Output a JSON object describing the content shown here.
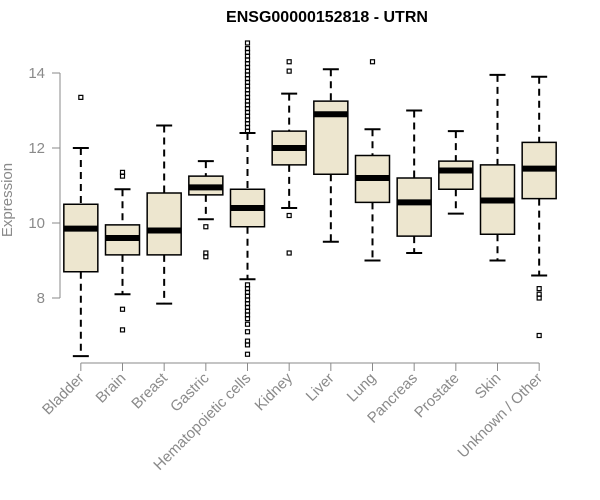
{
  "chart_data": {
    "type": "boxplot",
    "title": "ENSG00000152818 - UTRN",
    "ylabel": "Expression",
    "xlabel": "",
    "ylim": [
      6.2,
      14.9
    ],
    "yticks": [
      8,
      10,
      12,
      14
    ],
    "grid": false,
    "legend": "none",
    "box_fill": "#ede6cf",
    "stroke": "#000000",
    "axis_color": "#8a8a8a",
    "categories": [
      "Bladder",
      "Brain",
      "Breast",
      "Gastric",
      "Hematopoietic cells",
      "Kidney",
      "Liver",
      "Lung",
      "Pancreas",
      "Prostate",
      "Skin",
      "Unknown / Other"
    ],
    "series": [
      {
        "category": "Bladder",
        "whisker_low": 6.45,
        "q1": 8.7,
        "median": 9.85,
        "q3": 10.5,
        "whisker_high": 12.0,
        "outliers": [
          13.35
        ]
      },
      {
        "category": "Brain",
        "whisker_low": 8.1,
        "q1": 9.15,
        "median": 9.6,
        "q3": 9.95,
        "whisker_high": 10.9,
        "outliers": [
          11.25,
          11.35,
          7.7,
          7.15
        ]
      },
      {
        "category": "Breast",
        "whisker_low": 7.85,
        "q1": 9.15,
        "median": 9.8,
        "q3": 10.8,
        "whisker_high": 12.6,
        "outliers": []
      },
      {
        "category": "Gastric",
        "whisker_low": 10.1,
        "q1": 10.75,
        "median": 10.95,
        "q3": 11.25,
        "whisker_high": 11.65,
        "outliers": [
          9.9,
          9.2,
          9.1
        ]
      },
      {
        "category": "Hematopoietic cells",
        "whisker_low": 8.5,
        "q1": 9.9,
        "median": 10.4,
        "q3": 10.9,
        "whisker_high": 12.4,
        "outliers": [
          14.8,
          14.65,
          14.55,
          14.45,
          14.35,
          14.25,
          14.15,
          14.05,
          13.95,
          13.85,
          13.75,
          13.65,
          13.55,
          13.45,
          13.35,
          13.25,
          13.15,
          13.05,
          12.95,
          12.85,
          12.75,
          12.65,
          12.55,
          12.45,
          8.35,
          8.25,
          8.15,
          8.05,
          7.95,
          7.85,
          7.75,
          7.65,
          7.55,
          7.45,
          7.3,
          7.1,
          6.85,
          6.75,
          6.5
        ]
      },
      {
        "category": "Kidney",
        "whisker_low": 10.4,
        "q1": 11.55,
        "median": 12.0,
        "q3": 12.45,
        "whisker_high": 13.45,
        "outliers": [
          14.3,
          14.05,
          10.2,
          9.2
        ]
      },
      {
        "category": "Liver",
        "whisker_low": 9.5,
        "q1": 11.3,
        "median": 12.9,
        "q3": 13.25,
        "whisker_high": 14.1,
        "outliers": []
      },
      {
        "category": "Lung",
        "whisker_low": 9.0,
        "q1": 10.55,
        "median": 11.2,
        "q3": 11.8,
        "whisker_high": 12.5,
        "outliers": [
          14.3
        ]
      },
      {
        "category": "Pancreas",
        "whisker_low": 9.2,
        "q1": 9.65,
        "median": 10.55,
        "q3": 11.2,
        "whisker_high": 13.0,
        "outliers": []
      },
      {
        "category": "Prostate",
        "whisker_low": 10.25,
        "q1": 10.9,
        "median": 11.4,
        "q3": 11.65,
        "whisker_high": 12.45,
        "outliers": []
      },
      {
        "category": "Skin",
        "whisker_low": 9.0,
        "q1": 9.7,
        "median": 10.6,
        "q3": 11.55,
        "whisker_high": 13.95,
        "outliers": []
      },
      {
        "category": "Unknown / Other",
        "whisker_low": 8.6,
        "q1": 10.65,
        "median": 11.45,
        "q3": 12.15,
        "whisker_high": 13.9,
        "outliers": [
          8.25,
          8.1,
          8.0,
          7.0
        ]
      }
    ]
  }
}
